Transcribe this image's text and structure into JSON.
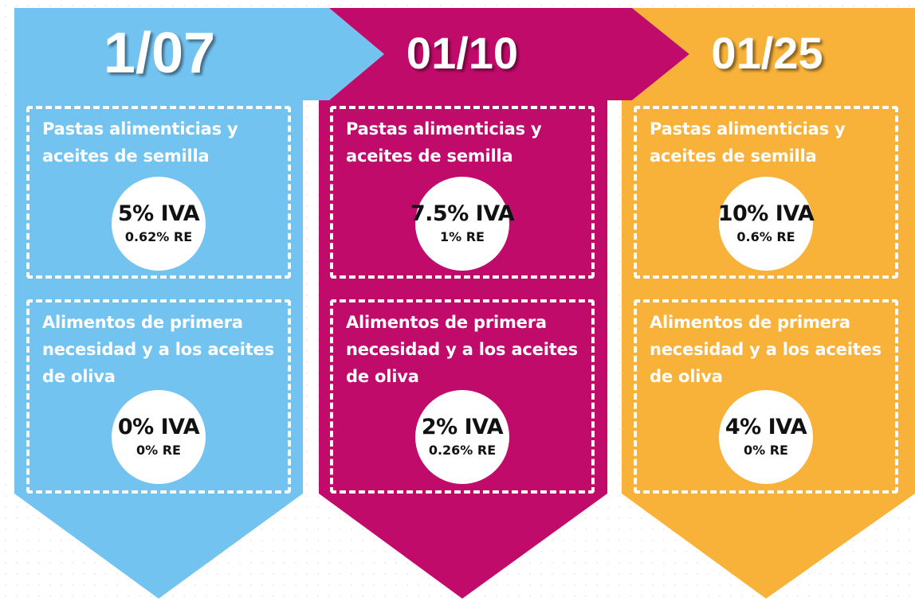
{
  "colors": {
    "blue": "#73c3f1",
    "magenta": "#c10b6a",
    "orange": "#f8b239",
    "card_border": "#ffffff",
    "badge_text": "#111111"
  },
  "columns": [
    {
      "date": "1/07",
      "cards": [
        {
          "title": "Pastas alimenticias y aceites de semilla",
          "iva": "5% IVA",
          "re": "0.62% RE"
        },
        {
          "title": "Alimentos de primera necesidad y a los aceites de oliva",
          "iva": "0% IVA",
          "re": "0% RE"
        }
      ]
    },
    {
      "date": "01/10",
      "cards": [
        {
          "title": "Pastas alimenticias y aceites de semilla",
          "iva": "7.5% IVA",
          "re": "1% RE"
        },
        {
          "title": "Alimentos de primera necesidad y a los aceites de oliva",
          "iva": "2% IVA",
          "re": "0.26% RE"
        }
      ]
    },
    {
      "date": "01/25",
      "cards": [
        {
          "title": "Pastas alimenticias y aceites de semilla",
          "iva": "10% IVA",
          "re": "0.6% RE"
        },
        {
          "title": "Alimentos de primera necesidad y a los aceites de oliva",
          "iva": "4% IVA",
          "re": "0% RE"
        }
      ]
    }
  ]
}
